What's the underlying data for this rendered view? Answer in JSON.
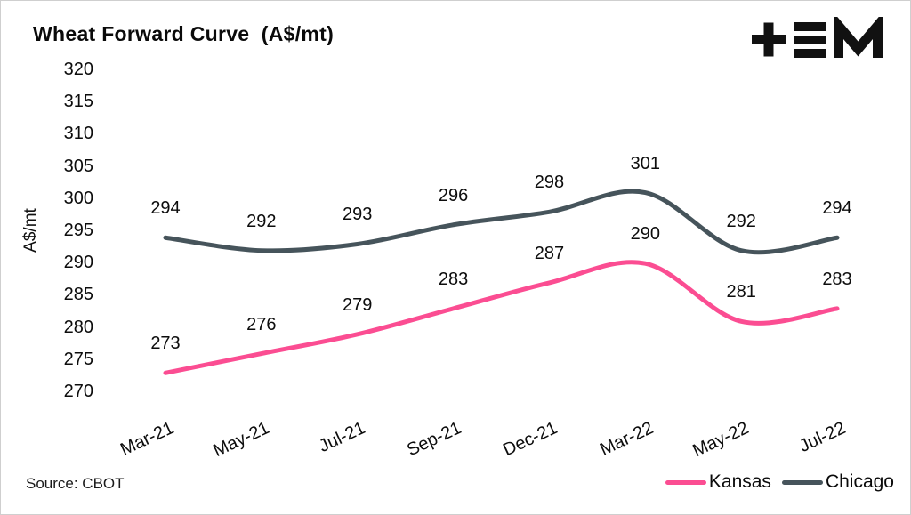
{
  "header": {
    "title": "Wheat Forward Curve  (A$/mt)"
  },
  "footer": {
    "source": "Source: CBOT"
  },
  "logo": {
    "name": "tem-logo"
  },
  "chart_data": {
    "type": "line",
    "title": "Wheat Forward Curve (A$/mt)",
    "ylabel": "A$/mt",
    "categories": [
      "Mar-21",
      "May-21",
      "Jul-21",
      "Sep-21",
      "Dec-21",
      "Mar-22",
      "May-22",
      "Jul-22"
    ],
    "series": [
      {
        "name": "Kansas",
        "color": "#fb4d92",
        "values": [
          273,
          276,
          279,
          283,
          287,
          290,
          281,
          283
        ]
      },
      {
        "name": "Chicago",
        "color": "#46545b",
        "values": [
          294,
          292,
          293,
          296,
          298,
          301,
          292,
          294
        ]
      }
    ],
    "ylim": [
      270,
      320
    ],
    "ytick_step": 5,
    "grid": false,
    "data_labels": true,
    "legend_position": "bottom-right",
    "source": "Source: CBOT"
  }
}
